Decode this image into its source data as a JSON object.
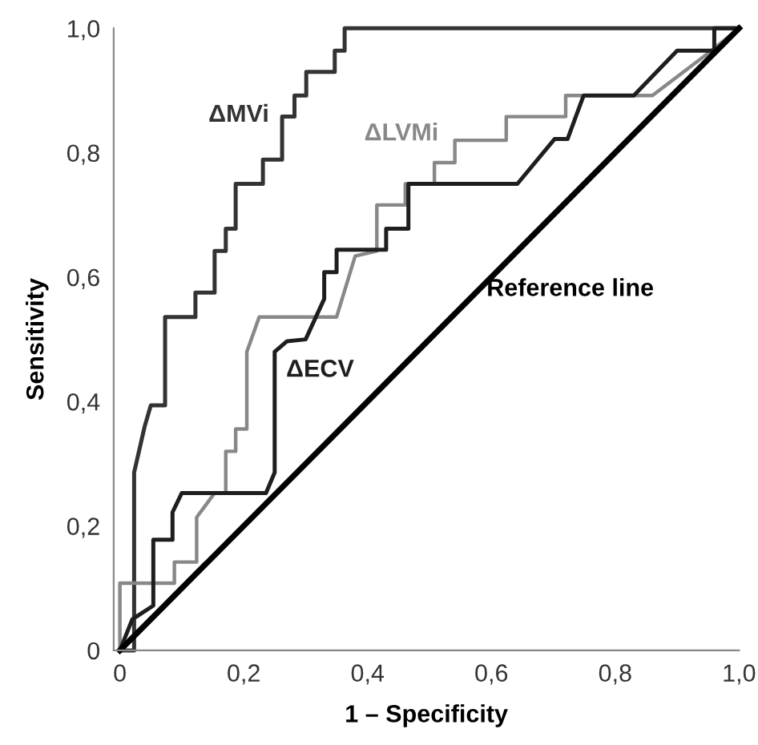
{
  "chart_data": {
    "type": "line",
    "xlabel": "1 – Specificity",
    "ylabel": "Sensitivity",
    "xlim": [
      -0.01,
      1.0
    ],
    "ylim": [
      0,
      1.0
    ],
    "xticks": [
      0,
      {
        "value": 0.2,
        "label": "0,2"
      },
      {
        "value": 0.4,
        "label": "0,4"
      },
      {
        "value": 0.6,
        "label": "0,6"
      },
      {
        "value": 0.8,
        "label": "0,8"
      },
      {
        "value": 1.0,
        "label": "1,0"
      }
    ],
    "yticks": [
      0,
      {
        "value": 0.2,
        "label": "0,2"
      },
      {
        "value": 0.4,
        "label": "0,4"
      },
      {
        "value": 0.6,
        "label": "0,6"
      },
      {
        "value": 0.8,
        "label": "0,8"
      },
      {
        "value": 1.0,
        "label": "1,0"
      }
    ],
    "grid": false,
    "legend": false,
    "marker": "none",
    "line_style": "solid",
    "series": [
      {
        "name": "ΔMVi",
        "color": "#333333",
        "x": [
          0,
          0.023,
          0.023,
          0.04,
          0.05,
          0.073,
          0.073,
          0.122,
          0.122,
          0.153,
          0.153,
          0.171,
          0.171,
          0.187,
          0.187,
          0.231,
          0.231,
          0.262,
          0.262,
          0.282,
          0.282,
          0.301,
          0.301,
          0.347,
          0.347,
          0.363,
          0.363,
          1
        ],
        "values": [
          0,
          0,
          0.286,
          0.36,
          0.394,
          0.394,
          0.536,
          0.536,
          0.575,
          0.575,
          0.642,
          0.642,
          0.678,
          0.678,
          0.75,
          0.75,
          0.789,
          0.789,
          0.858,
          0.858,
          0.892,
          0.892,
          0.93,
          0.93,
          0.964,
          0.964,
          1,
          1
        ]
      },
      {
        "name": "ΔLVMi",
        "color": "#888888",
        "x": [
          0,
          0,
          0.088,
          0.088,
          0.124,
          0.124,
          0.153,
          0.171,
          0.171,
          0.187,
          0.187,
          0.205,
          0.205,
          0.225,
          0.24,
          0.24,
          0.35,
          0.38,
          0.415,
          0.415,
          0.461,
          0.461,
          0.508,
          0.508,
          0.541,
          0.541,
          0.624,
          0.624,
          0.72,
          0.72,
          0.86,
          0.95,
          1
        ],
        "values": [
          0,
          0.108,
          0.108,
          0.142,
          0.142,
          0.214,
          0.253,
          0.253,
          0.32,
          0.32,
          0.356,
          0.356,
          0.48,
          0.536,
          0.536,
          0.536,
          0.536,
          0.634,
          0.642,
          0.716,
          0.716,
          0.75,
          0.75,
          0.784,
          0.784,
          0.82,
          0.82,
          0.858,
          0.858,
          0.892,
          0.892,
          0.96,
          1
        ]
      },
      {
        "name": "ΔECV",
        "color": "#1e1e1e",
        "x": [
          0,
          0.02,
          0.054,
          0.054,
          0.085,
          0.085,
          0.1,
          0.236,
          0.25,
          0.25,
          0.27,
          0.3,
          0.33,
          0.33,
          0.35,
          0.35,
          0.43,
          0.43,
          0.466,
          0.466,
          0.642,
          0.702,
          0.723,
          0.749,
          0.83,
          0.9,
          0.96,
          0.96,
          1
        ],
        "values": [
          0,
          0.05,
          0.072,
          0.178,
          0.178,
          0.222,
          0.253,
          0.253,
          0.286,
          0.48,
          0.497,
          0.5,
          0.565,
          0.608,
          0.608,
          0.644,
          0.644,
          0.678,
          0.678,
          0.75,
          0.75,
          0.822,
          0.822,
          0.892,
          0.892,
          0.964,
          0.964,
          1,
          1
        ]
      },
      {
        "name": "Reference line",
        "color": "#000000",
        "x": [
          0,
          1
        ],
        "values": [
          0,
          1
        ]
      }
    ]
  }
}
